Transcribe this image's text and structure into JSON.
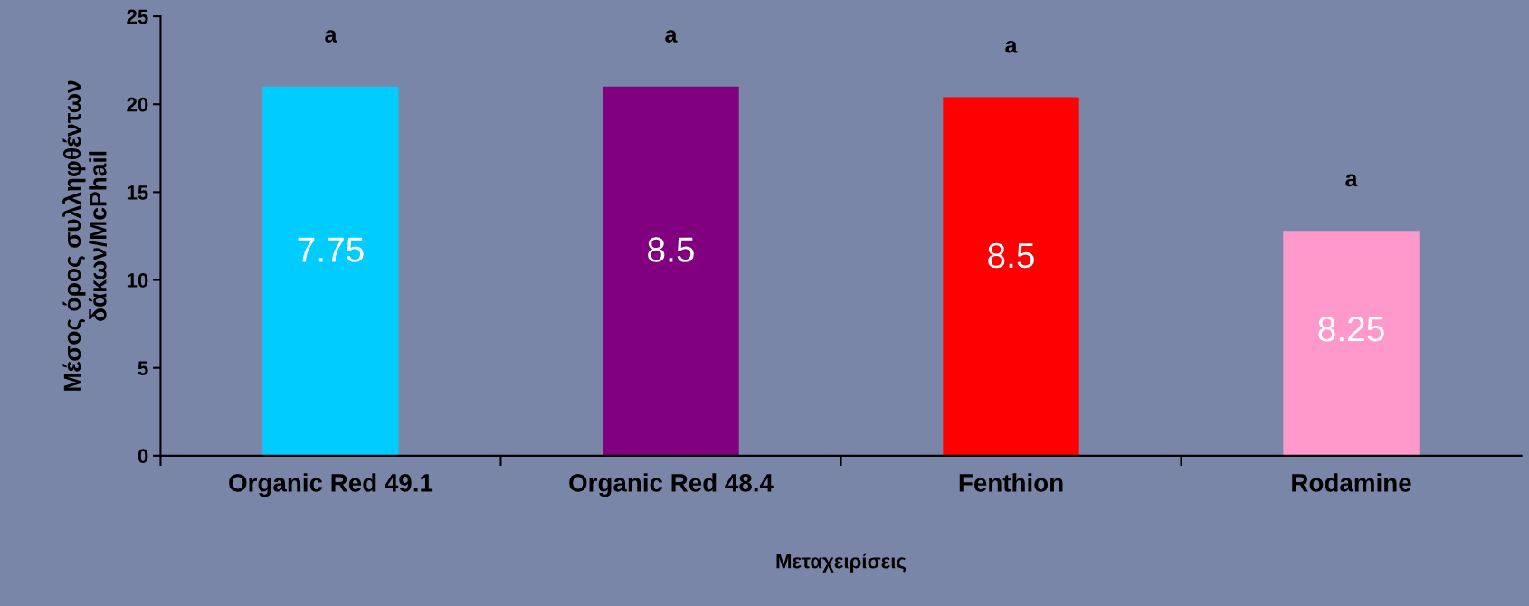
{
  "chart_data": {
    "type": "bar",
    "xlabel": "Μεταχειρίσεις",
    "ylabel": "Μέσος όρος συλληφθέντων\nδάκων/McPhail",
    "categories": [
      "Organic Red 49.1",
      "Organic Red 48.4",
      "Fenthion",
      "Rodamine"
    ],
    "values": [
      21,
      21,
      20.4,
      12.8
    ],
    "colors": [
      "#00ccff",
      "#800080",
      "#ff0000",
      "#ff99cc"
    ],
    "ylim": [
      0,
      25
    ],
    "yticks": [
      0,
      5,
      10,
      15,
      20,
      25
    ],
    "grid": false,
    "legend": false,
    "annotations": [
      "7.75",
      "8.5",
      "8.5",
      "8.25",
      "a",
      "a",
      "a",
      "a"
    ]
  }
}
